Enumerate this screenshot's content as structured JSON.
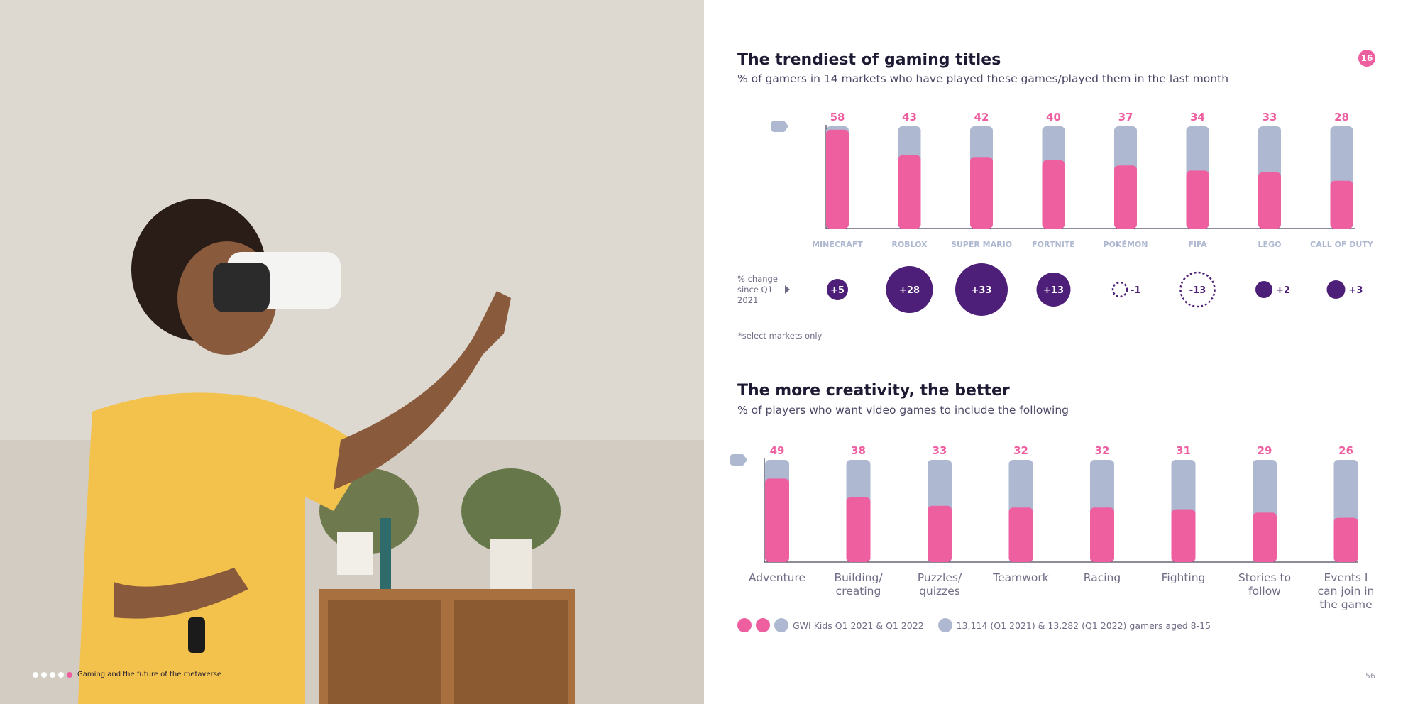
{
  "chart_data": [
    {
      "type": "bar",
      "title": "The trendiest of gaming titles",
      "subtitle": "% of gamers in 14 markets who have played these games/played them in the last month",
      "categories": [
        "MINECRAFT",
        "ROBLOX",
        "SUPER MARIO",
        "FORTNITE",
        "POKÉMON",
        "FIFA",
        "LEGO",
        "CALL OF DUTY"
      ],
      "series": [
        {
          "name": "",
          "values": [
            58,
            43,
            42,
            40,
            37,
            34,
            33,
            28
          ]
        }
      ],
      "ylim": [
        0,
        60
      ],
      "change_label": "% change since Q1 2021",
      "change_values": [
        "+5",
        "+28",
        "+33",
        "+13",
        "-1",
        "-13",
        "+2",
        "+3"
      ],
      "footnote": "*select markets only"
    },
    {
      "type": "bar",
      "title": "The more creativity, the better",
      "subtitle": "% of players who want video games to include the following",
      "categories": [
        "Adventure",
        "Building/ creating",
        "Puzzles/ quizzes",
        "Teamwork",
        "Racing",
        "Fighting",
        "Stories to follow",
        "Events I can join in the game"
      ],
      "series": [
        {
          "name": "",
          "values": [
            49,
            38,
            33,
            32,
            32,
            31,
            29,
            26
          ]
        }
      ],
      "ylim": [
        0,
        60
      ]
    }
  ],
  "legend": {
    "source": "GWI Kids Q1 2021 & Q1 2022",
    "base": "13,114 (Q1 2021) & 13,282 (Q1 2022) gamers aged 8-15"
  },
  "page_badge": "16",
  "footer_text": "Gaming and the future of the metaverse",
  "page_number": "56",
  "colors": {
    "pink": "#ee5fa0",
    "grey": "#aeb8d1",
    "purple": "#4e1f78",
    "dark": "#1d1a33"
  }
}
